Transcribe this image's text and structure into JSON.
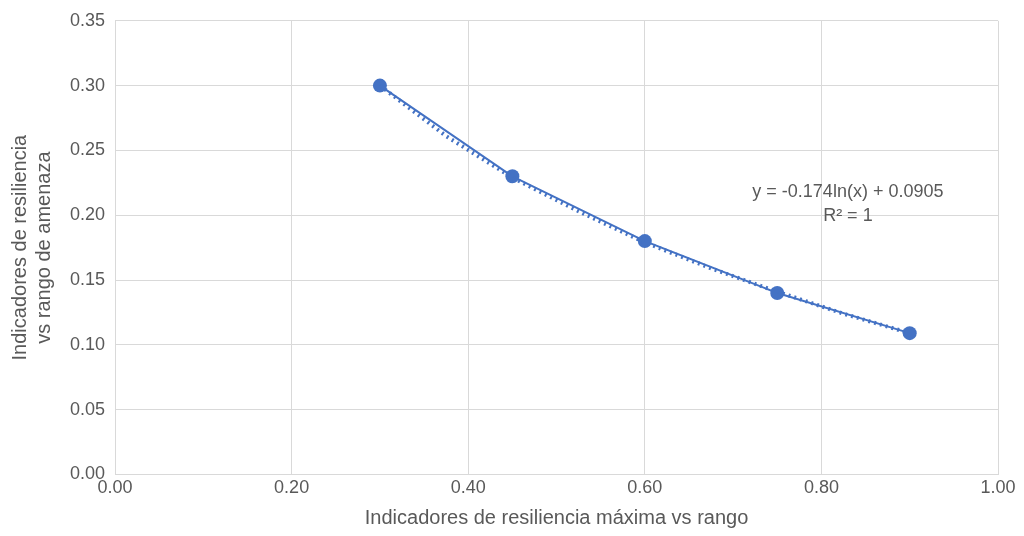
{
  "chart_data": {
    "type": "line",
    "xlabel": "Indicadores de resiliencia máxima vs rango",
    "ylabel": "Indicadores de resiliencia vs rango de amenaza",
    "xlim": [
      0,
      1
    ],
    "xticks": [
      {
        "value": 0,
        "label": "0.00"
      },
      {
        "value": 0.2,
        "label": "0.20"
      },
      {
        "value": 0.4,
        "label": "0.40"
      },
      {
        "value": 0.6,
        "label": "0.60"
      },
      {
        "value": 0.8,
        "label": "0.80"
      },
      {
        "value": 1,
        "label": "1.00"
      }
    ],
    "ylim": [
      0,
      0.35
    ],
    "yticks": [
      {
        "value": 0,
        "label": "0.00"
      },
      {
        "value": 0.05,
        "label": "0.05"
      },
      {
        "value": 0.1,
        "label": "0.10"
      },
      {
        "value": 0.15,
        "label": "0.15"
      },
      {
        "value": 0.2,
        "label": "0.20"
      },
      {
        "value": 0.25,
        "label": "0.25"
      },
      {
        "value": 0.3,
        "label": "0.30"
      },
      {
        "value": 0.35,
        "label": "0.35"
      }
    ],
    "grid": true,
    "legend": false,
    "marker": "circle",
    "line_style": "solid",
    "series": [
      {
        "color": "#4472c4",
        "x": [
          0.3,
          0.45,
          0.6,
          0.75,
          0.9
        ],
        "values": [
          0.3,
          0.23,
          0.18,
          0.14,
          0.109
        ]
      },
      {
        "type": "line",
        "color": "#4472c4",
        "marker": "none",
        "line_style": "dotted",
        "x": [
          0.3,
          0.375,
          0.45,
          0.525,
          0.6,
          0.675,
          0.75,
          0.825,
          0.9
        ],
        "values": [
          0.3,
          0.261,
          0.229,
          0.203,
          0.179,
          0.159,
          0.141,
          0.124,
          0.109
        ]
      }
    ],
    "annotations": [
      "y = -0.174ln(x) + 0.0905",
      "R² = 1"
    ]
  }
}
